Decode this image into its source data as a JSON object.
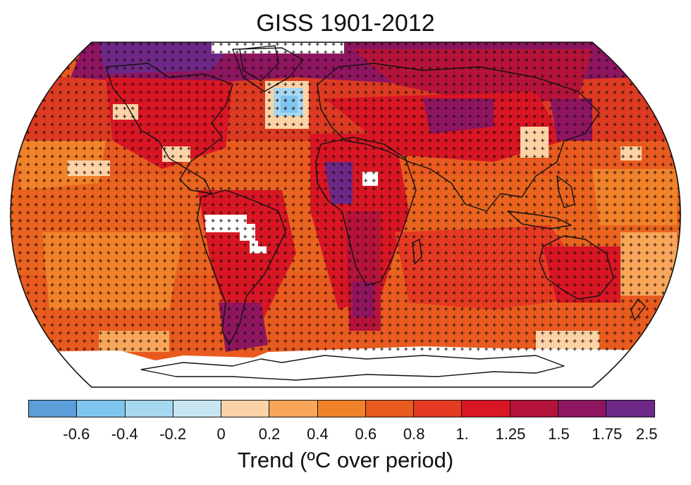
{
  "title": "GISS 1901-2012",
  "map": {
    "projection": "Robinson",
    "variable": "temperature trend",
    "period": "1901-2012",
    "significance_marker": "+",
    "no_data_color": "#ffffff",
    "coastline_color": "#111111"
  },
  "legend": {
    "label": "Trend (ºC over period)",
    "colors": [
      "#5b9ed9",
      "#7fc6ef",
      "#a6d8f0",
      "#c7e6f2",
      "#fcd3a6",
      "#f7a65a",
      "#f0822a",
      "#e95a1e",
      "#e53a22",
      "#d81624",
      "#b5143a",
      "#8e1560",
      "#6e2887"
    ],
    "tick_labels": [
      "-0.6",
      "-0.4",
      "-0.2",
      "0",
      "0.2",
      "0.4",
      "0.6",
      "0.8",
      "1.",
      "1.25",
      "1.5",
      "1.75",
      "2.5"
    ]
  }
}
